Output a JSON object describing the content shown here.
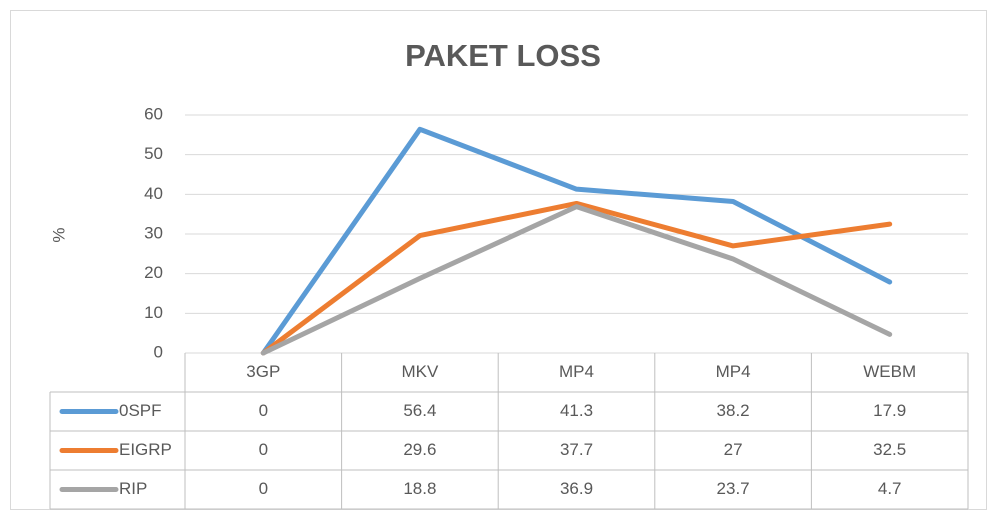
{
  "chart_data": {
    "type": "line",
    "title": "PAKET LOSS",
    "y_label": "%",
    "categories": [
      "3GP",
      "MKV",
      "MP4",
      "MP4",
      "WEBM"
    ],
    "series": [
      {
        "name": "0SPF",
        "color": "#5b9bd5",
        "values": [
          0,
          56.4,
          41.3,
          38.2,
          17.9
        ]
      },
      {
        "name": "EIGRP",
        "color": "#ed7d31",
        "values": [
          0,
          29.6,
          37.7,
          27,
          32.5
        ]
      },
      {
        "name": "RIP",
        "color": "#a5a5a5",
        "values": [
          0,
          18.8,
          36.9,
          23.7,
          4.7
        ]
      }
    ],
    "ylim": [
      0,
      60
    ],
    "yticks": [
      0,
      10,
      20,
      30,
      40,
      50,
      60
    ],
    "grid": true,
    "data_table": true
  }
}
